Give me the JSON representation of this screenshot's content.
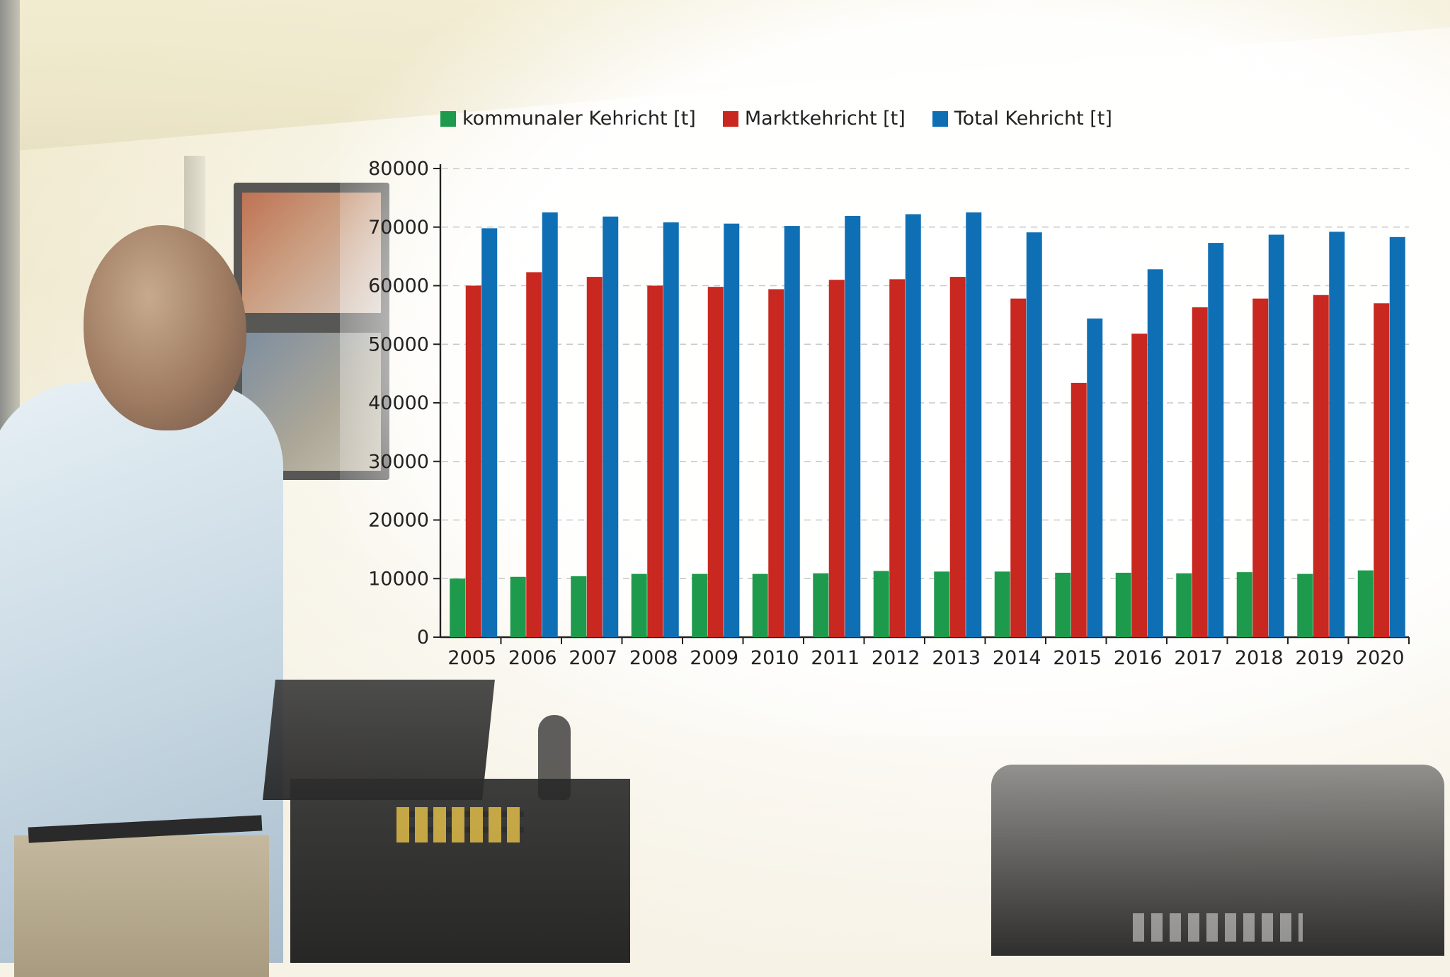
{
  "chart_data": {
    "type": "bar",
    "categories": [
      "2005",
      "2006",
      "2007",
      "2008",
      "2009",
      "2010",
      "2011",
      "2012",
      "2013",
      "2014",
      "2015",
      "2016",
      "2017",
      "2018",
      "2019",
      "2020"
    ],
    "series": [
      {
        "name": "kommunaler Kehricht [t]",
        "color": "#1e9a4c",
        "values": [
          10000,
          10300,
          10400,
          10800,
          10800,
          10800,
          10900,
          11300,
          11200,
          11200,
          11000,
          11000,
          10900,
          11100,
          10800,
          11400
        ]
      },
      {
        "name": "Marktkehricht [t]",
        "color": "#c8281f",
        "values": [
          60000,
          62300,
          61500,
          60000,
          59800,
          59400,
          61000,
          61100,
          61500,
          57800,
          43400,
          51800,
          56300,
          57800,
          58400,
          57000
        ]
      },
      {
        "name": "Total Kehricht [t]",
        "color": "#0f6fb4",
        "values": [
          69800,
          72500,
          71800,
          70800,
          70600,
          70200,
          71900,
          72200,
          72500,
          69100,
          54400,
          62800,
          67300,
          68700,
          69200,
          68300
        ]
      }
    ],
    "yticks": [
      0,
      10000,
      20000,
      30000,
      40000,
      50000,
      60000,
      70000,
      80000
    ],
    "ylim": [
      0,
      80000
    ],
    "grid": true,
    "legend_position": "top"
  }
}
